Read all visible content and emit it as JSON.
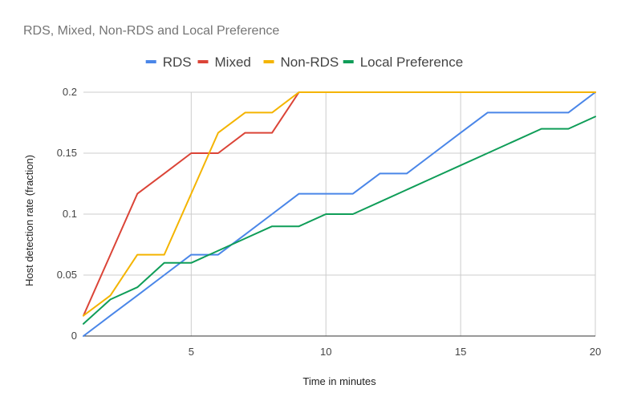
{
  "chart_data": {
    "type": "line",
    "title": "RDS, Mixed, Non-RDS and Local Preference",
    "xlabel": "Time in minutes",
    "ylabel": "Host detection rate (fraction)",
    "xlim": [
      1,
      20
    ],
    "ylim": [
      0,
      0.2
    ],
    "xticks": [
      5,
      10,
      15,
      20
    ],
    "yticks": [
      0,
      0.05,
      0.1,
      0.15,
      0.2
    ],
    "ytick_labels": [
      "0",
      "0.05",
      "0.1",
      "0.15",
      "0.2"
    ],
    "grid": true,
    "legend_position": "top",
    "x": [
      1,
      2,
      3,
      4,
      5,
      6,
      7,
      8,
      9,
      10,
      11,
      12,
      13,
      14,
      15,
      16,
      17,
      18,
      19,
      20
    ],
    "series": [
      {
        "name": "RDS",
        "color": "#4a86e8",
        "values": [
          0,
          0.0167,
          0.0333,
          0.05,
          0.0667,
          0.0667,
          0.0833,
          0.1,
          0.1167,
          0.1167,
          0.1167,
          0.1333,
          0.1333,
          0.15,
          0.1667,
          0.1833,
          0.1833,
          0.1833,
          0.1833,
          0.2
        ]
      },
      {
        "name": "Mixed",
        "color": "#db4437",
        "values": [
          0.0167,
          0.0667,
          0.1167,
          0.1333,
          0.15,
          0.15,
          0.1667,
          0.1667,
          0.2,
          0.2,
          0.2,
          0.2,
          0.2,
          0.2,
          0.2,
          0.2,
          0.2,
          0.2,
          0.2,
          0.2
        ]
      },
      {
        "name": "Non-RDS",
        "color": "#f4b400",
        "values": [
          0.0167,
          0.0333,
          0.0667,
          0.0667,
          0.1167,
          0.1667,
          0.1833,
          0.1833,
          0.2,
          0.2,
          0.2,
          0.2,
          0.2,
          0.2,
          0.2,
          0.2,
          0.2,
          0.2,
          0.2,
          0.2
        ]
      },
      {
        "name": "Local Preference",
        "color": "#0f9d58",
        "values": [
          0.01,
          0.03,
          0.04,
          0.06,
          0.06,
          0.07,
          0.08,
          0.09,
          0.09,
          0.1,
          0.1,
          0.11,
          0.12,
          0.13,
          0.14,
          0.15,
          0.16,
          0.17,
          0.17,
          0.18
        ]
      }
    ]
  }
}
